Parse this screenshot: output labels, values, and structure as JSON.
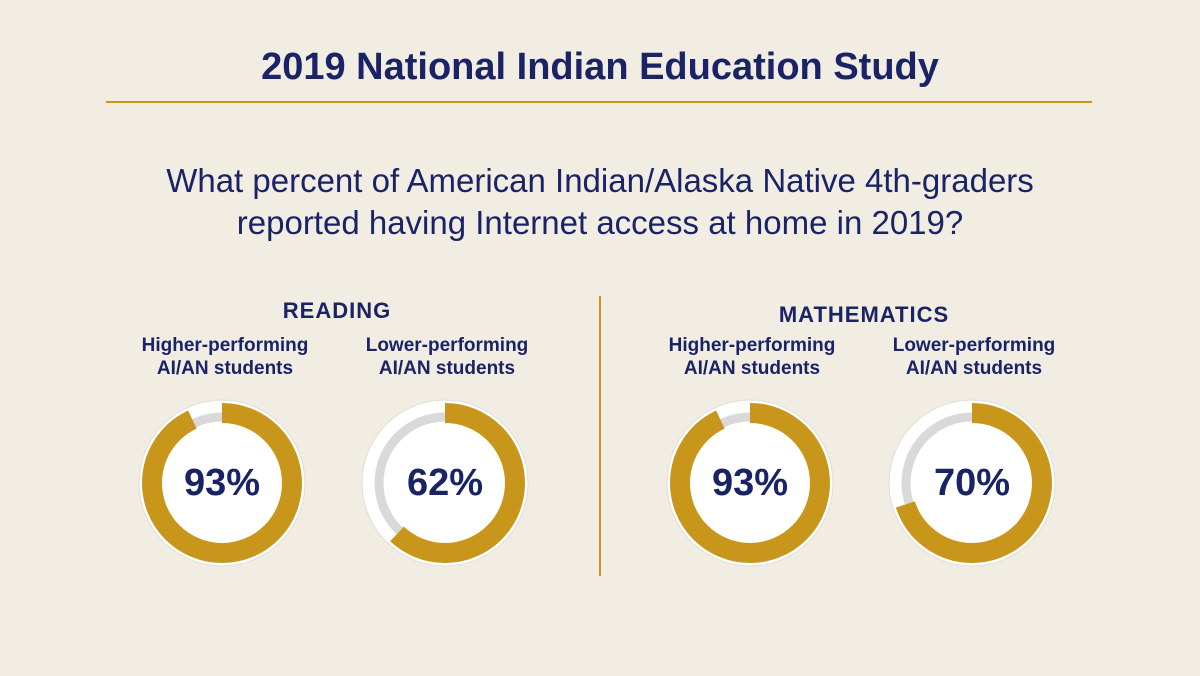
{
  "title": "2019 National Indian Education Study",
  "question_line1": "What percent of American Indian/Alaska Native 4th-graders",
  "question_line2": "reported having Internet access at home in 2019?",
  "colors": {
    "accent": "#c8961a",
    "track": "#d9d9d9",
    "text": "#1a2366",
    "background": "#f2ede3"
  },
  "chart_data": [
    {
      "type": "pie",
      "title": "READING",
      "categories": [
        "Higher-performing AI/AN students",
        "Lower-performing AI/AN students"
      ],
      "labels": [
        {
          "line1": "Higher-performing",
          "line2": "AI/AN students"
        },
        {
          "line1": "Lower-performing",
          "line2": "AI/AN students"
        }
      ],
      "values": [
        93,
        62
      ],
      "value_labels": [
        "93%",
        "62%"
      ]
    },
    {
      "type": "pie",
      "title": "MATHEMATICS",
      "categories": [
        "Higher-performing AI/AN students",
        "Lower-performing AI/AN students"
      ],
      "labels": [
        {
          "line1": "Higher-performing",
          "line2": "AI/AN students"
        },
        {
          "line1": "Lower-performing",
          "line2": "AI/AN students"
        }
      ],
      "values": [
        93,
        70
      ],
      "value_labels": [
        "93%",
        "70%"
      ]
    }
  ]
}
